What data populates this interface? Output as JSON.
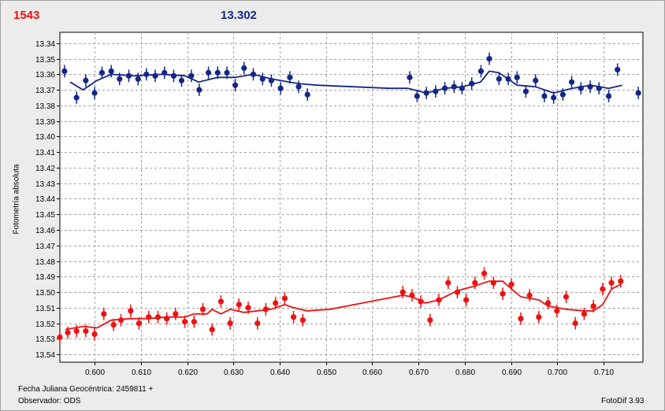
{
  "header": {
    "left_value": "1543",
    "right_value": "13.302"
  },
  "footer": {
    "date_label": "Fecha Juliana Geocéntrica: 2459811 +",
    "observer_label": "Observador: ODS",
    "software": "FotoDif 3.93"
  },
  "colors": {
    "series_blue": "#142787",
    "series_red": "#ee1111",
    "plot_bg": "#ffffff",
    "grid": "#a0a0a0"
  },
  "chart_data": {
    "type": "scatter",
    "title": "",
    "xlabel": "Fecha Juliana Geocéntrica: 2459811 +",
    "ylabel": "Fotometría absoluta",
    "xlim": [
      0.5925,
      0.7185
    ],
    "ylim": [
      13.545,
      13.333
    ],
    "y_inverted": true,
    "grid": true,
    "x_ticks": [
      0.6,
      0.61,
      0.62,
      0.63,
      0.64,
      0.65,
      0.66,
      0.67,
      0.68,
      0.69,
      0.7,
      0.71
    ],
    "x_tick_labels": [
      "0.600",
      "0.610",
      "0.620",
      "0.630",
      "0.640",
      "0.650",
      "0.660",
      "0.670",
      "0.680",
      "0.690",
      "0.700",
      "0.710"
    ],
    "y_ticks": [
      13.34,
      13.35,
      13.36,
      13.37,
      13.38,
      13.39,
      13.4,
      13.41,
      13.42,
      13.43,
      13.44,
      13.45,
      13.46,
      13.47,
      13.48,
      13.49,
      13.5,
      13.51,
      13.52,
      13.53,
      13.54
    ],
    "y_tick_labels": [
      "13.34",
      "13.35",
      "13.36",
      "13.37",
      "13.38",
      "13.39",
      "13.40",
      "13.41",
      "13.42",
      "13.43",
      "13.44",
      "13.45",
      "13.46",
      "13.47",
      "13.48",
      "13.49",
      "13.50",
      "13.51",
      "13.52",
      "13.53",
      "13.54"
    ],
    "series": [
      {
        "color": "#142787",
        "error": 0.004,
        "points": [
          [
            0.5935,
            13.358
          ],
          [
            0.5961,
            13.375
          ],
          [
            0.5981,
            13.364
          ],
          [
            0.6,
            13.372
          ],
          [
            0.6016,
            13.359
          ],
          [
            0.6036,
            13.358
          ],
          [
            0.6054,
            13.363
          ],
          [
            0.6074,
            13.361
          ],
          [
            0.6094,
            13.363
          ],
          [
            0.6112,
            13.36
          ],
          [
            0.6131,
            13.361
          ],
          [
            0.6151,
            13.359
          ],
          [
            0.6171,
            13.361
          ],
          [
            0.6188,
            13.364
          ],
          [
            0.6209,
            13.361
          ],
          [
            0.6226,
            13.37
          ],
          [
            0.6246,
            13.359
          ],
          [
            0.6266,
            13.359
          ],
          [
            0.6286,
            13.359
          ],
          [
            0.6304,
            13.367
          ],
          [
            0.6323,
            13.356
          ],
          [
            0.6343,
            13.36
          ],
          [
            0.6363,
            13.363
          ],
          [
            0.6382,
            13.364
          ],
          [
            0.6402,
            13.369
          ],
          [
            0.6422,
            13.362
          ],
          [
            0.6441,
            13.368
          ],
          [
            0.646,
            13.373
          ],
          [
            0.6681,
            13.362
          ],
          [
            0.6697,
            13.374
          ],
          [
            0.6717,
            13.372
          ],
          [
            0.6737,
            13.371
          ],
          [
            0.6757,
            13.369
          ],
          [
            0.6777,
            13.368
          ],
          [
            0.6794,
            13.369
          ],
          [
            0.6815,
            13.366
          ],
          [
            0.6835,
            13.358
          ],
          [
            0.6853,
            13.35
          ],
          [
            0.6874,
            13.363
          ],
          [
            0.6894,
            13.363
          ],
          [
            0.6913,
            13.362
          ],
          [
            0.6932,
            13.371
          ],
          [
            0.6953,
            13.364
          ],
          [
            0.6972,
            13.374
          ],
          [
            0.6992,
            13.375
          ],
          [
            0.7012,
            13.373
          ],
          [
            0.7031,
            13.365
          ],
          [
            0.7051,
            13.369
          ],
          [
            0.7071,
            13.368
          ],
          [
            0.709,
            13.369
          ],
          [
            0.7111,
            13.374
          ],
          [
            0.713,
            13.357
          ],
          [
            0.7175,
            13.372
          ]
        ],
        "trend": [
          [
            0.5947,
            13.365
          ],
          [
            0.5975,
            13.37
          ],
          [
            0.6005,
            13.364
          ],
          [
            0.6036,
            13.36
          ],
          [
            0.6085,
            13.361
          ],
          [
            0.6145,
            13.36
          ],
          [
            0.6195,
            13.361
          ],
          [
            0.6225,
            13.365
          ],
          [
            0.6266,
            13.362
          ],
          [
            0.6304,
            13.362
          ],
          [
            0.6343,
            13.36
          ],
          [
            0.6382,
            13.363
          ],
          [
            0.6441,
            13.366
          ],
          [
            0.6481,
            13.367
          ],
          [
            0.6637,
            13.369
          ],
          [
            0.6677,
            13.369
          ],
          [
            0.6717,
            13.372
          ],
          [
            0.6757,
            13.369
          ],
          [
            0.6795,
            13.368
          ],
          [
            0.6834,
            13.365
          ],
          [
            0.6853,
            13.358
          ],
          [
            0.6874,
            13.359
          ],
          [
            0.6913,
            13.367
          ],
          [
            0.6953,
            13.368
          ],
          [
            0.6992,
            13.372
          ],
          [
            0.7032,
            13.369
          ],
          [
            0.7072,
            13.367
          ],
          [
            0.7111,
            13.369
          ],
          [
            0.714,
            13.367
          ]
        ]
      },
      {
        "color": "#ee1111",
        "error": 0.004,
        "points": [
          [
            0.5925,
            13.529
          ],
          [
            0.5942,
            13.526
          ],
          [
            0.5961,
            13.525
          ],
          [
            0.5981,
            13.525
          ],
          [
            0.6,
            13.527
          ],
          [
            0.602,
            13.514
          ],
          [
            0.6041,
            13.521
          ],
          [
            0.6057,
            13.518
          ],
          [
            0.6078,
            13.512
          ],
          [
            0.6096,
            13.52
          ],
          [
            0.6117,
            13.516
          ],
          [
            0.6137,
            13.516
          ],
          [
            0.6156,
            13.517
          ],
          [
            0.6175,
            13.514
          ],
          [
            0.6195,
            13.519
          ],
          [
            0.6215,
            13.519
          ],
          [
            0.6234,
            13.511
          ],
          [
            0.6254,
            13.524
          ],
          [
            0.6273,
            13.506
          ],
          [
            0.6293,
            13.52
          ],
          [
            0.6312,
            13.508
          ],
          [
            0.6332,
            13.51
          ],
          [
            0.6352,
            13.52
          ],
          [
            0.637,
            13.511
          ],
          [
            0.6391,
            13.507
          ],
          [
            0.6411,
            13.504
          ],
          [
            0.643,
            13.516
          ],
          [
            0.645,
            13.518
          ],
          [
            0.6666,
            13.5
          ],
          [
            0.6686,
            13.502
          ],
          [
            0.6705,
            13.506
          ],
          [
            0.6725,
            13.518
          ],
          [
            0.6744,
            13.505
          ],
          [
            0.6764,
            13.494
          ],
          [
            0.6784,
            13.5
          ],
          [
            0.6803,
            13.505
          ],
          [
            0.6822,
            13.494
          ],
          [
            0.6842,
            13.488
          ],
          [
            0.6862,
            13.494
          ],
          [
            0.6882,
            13.501
          ],
          [
            0.6901,
            13.495
          ],
          [
            0.6921,
            13.517
          ],
          [
            0.694,
            13.502
          ],
          [
            0.696,
            13.516
          ],
          [
            0.698,
            13.507
          ],
          [
            0.6999,
            13.512
          ],
          [
            0.7019,
            13.503
          ],
          [
            0.7039,
            13.52
          ],
          [
            0.7058,
            13.514
          ],
          [
            0.7078,
            13.509
          ],
          [
            0.7098,
            13.498
          ],
          [
            0.7117,
            13.494
          ],
          [
            0.7137,
            13.493
          ]
        ],
        "trend": [
          [
            0.5937,
            13.524
          ],
          [
            0.5976,
            13.522
          ],
          [
            0.6005,
            13.523
          ],
          [
            0.6036,
            13.518
          ],
          [
            0.6075,
            13.517
          ],
          [
            0.6116,
            13.517
          ],
          [
            0.6156,
            13.516
          ],
          [
            0.6194,
            13.516
          ],
          [
            0.6215,
            13.514
          ],
          [
            0.6243,
            13.514
          ],
          [
            0.6254,
            13.511
          ],
          [
            0.6273,
            13.514
          ],
          [
            0.6293,
            13.511
          ],
          [
            0.6322,
            13.513
          ],
          [
            0.6352,
            13.512
          ],
          [
            0.6381,
            13.511
          ],
          [
            0.6411,
            13.508
          ],
          [
            0.643,
            13.51
          ],
          [
            0.6459,
            13.512
          ],
          [
            0.6509,
            13.511
          ],
          [
            0.6666,
            13.502
          ],
          [
            0.6686,
            13.503
          ],
          [
            0.6715,
            13.507
          ],
          [
            0.6744,
            13.505
          ],
          [
            0.6784,
            13.499
          ],
          [
            0.6822,
            13.496
          ],
          [
            0.6852,
            13.493
          ],
          [
            0.6882,
            13.493
          ],
          [
            0.6921,
            13.503
          ],
          [
            0.696,
            13.505
          ],
          [
            0.698,
            13.509
          ],
          [
            0.7019,
            13.511
          ],
          [
            0.7058,
            13.512
          ],
          [
            0.7078,
            13.512
          ],
          [
            0.7098,
            13.508
          ],
          [
            0.7117,
            13.498
          ],
          [
            0.7137,
            13.495
          ]
        ]
      }
    ]
  }
}
